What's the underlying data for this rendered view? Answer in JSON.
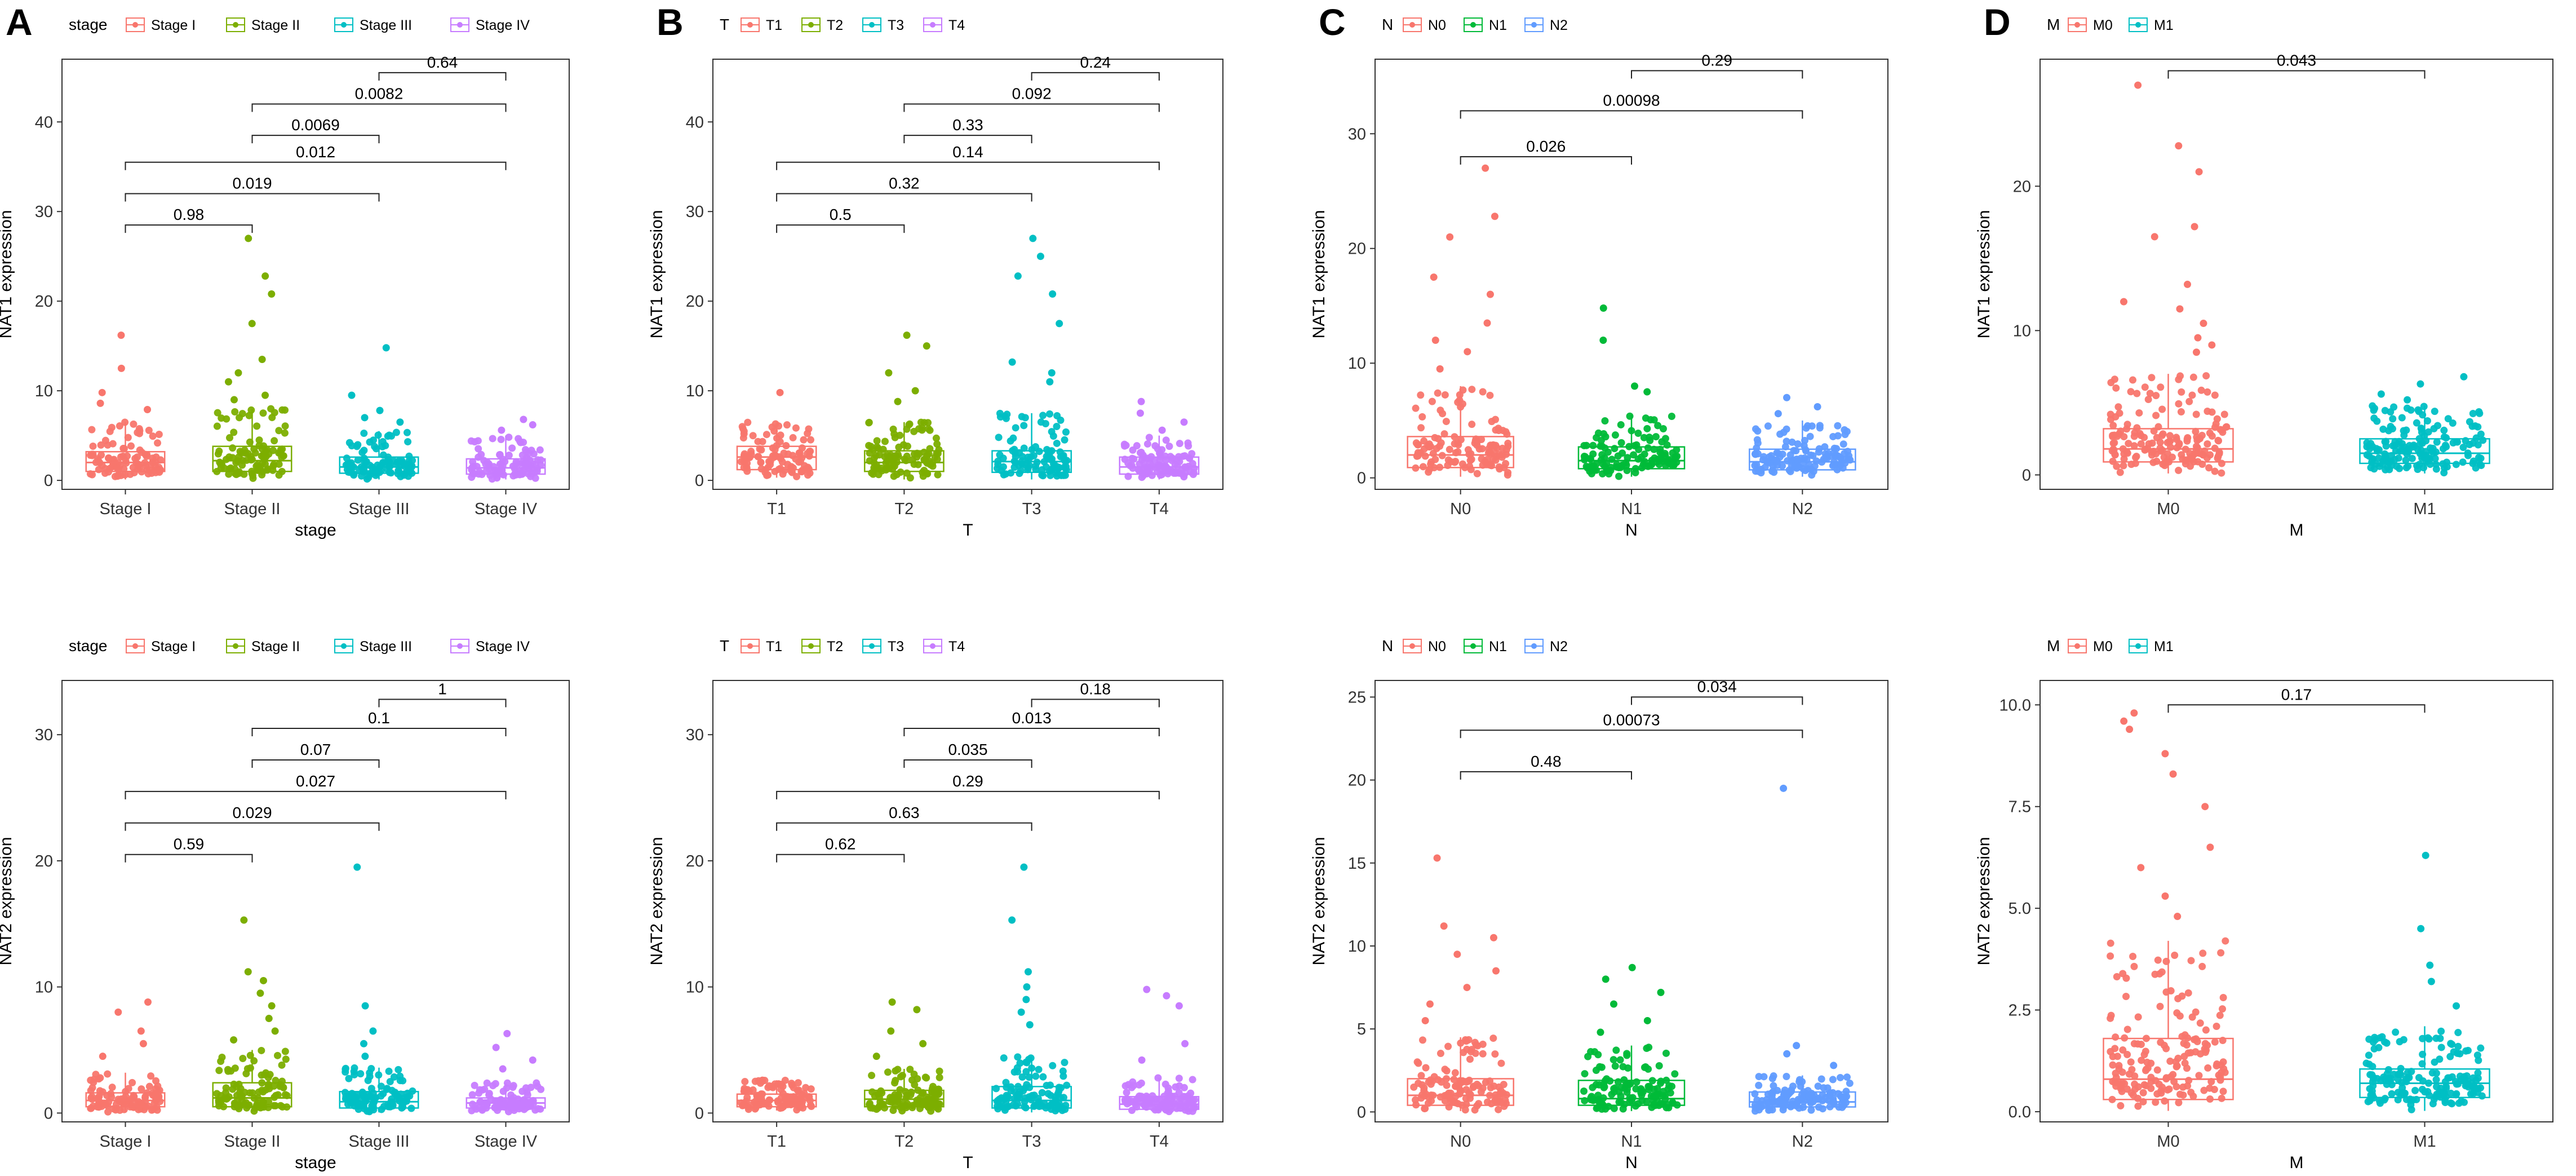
{
  "chart_data": [
    {
      "type": "box",
      "panel": "A",
      "xlabel": "stage",
      "ylabel": "NAT1 expression",
      "ylim": [
        -1,
        47
      ],
      "yticks": [
        0,
        10,
        20,
        30,
        40
      ],
      "legend": {
        "title": "stage",
        "entries": [
          "Stage I",
          "Stage II",
          "Stage III",
          "Stage IV"
        ],
        "position": "top"
      },
      "categories": [
        "Stage I",
        "Stage II",
        "Stage III",
        "Stage IV"
      ],
      "colors": [
        "#F8766D",
        "#7CAE00",
        "#00BFC4",
        "#C77CFF"
      ],
      "boxes": [
        {
          "q1": 1.0,
          "median": 2.0,
          "q3": 3.2,
          "whisker_low": 0.1,
          "whisker_high": 6.5
        },
        {
          "q1": 1.0,
          "median": 2.2,
          "q3": 3.8,
          "whisker_low": 0.1,
          "whisker_high": 8.0
        },
        {
          "q1": 0.8,
          "median": 1.5,
          "q3": 2.6,
          "whisker_low": 0.1,
          "whisker_high": 5.5
        },
        {
          "q1": 0.7,
          "median": 1.4,
          "q3": 2.4,
          "whisker_low": 0.1,
          "whisker_high": 5.0
        }
      ],
      "outliers": [
        [
          16.2,
          12.5,
          9.8,
          8.6,
          7.9
        ],
        [
          27.0,
          22.8,
          20.8,
          17.5,
          13.5,
          12.0,
          11.0,
          9.5,
          9.0
        ],
        [
          14.8,
          9.5,
          7.8,
          7.0,
          6.5
        ],
        [
          6.8,
          6.2,
          5.6
        ]
      ],
      "comparisons": [
        {
          "from": 0,
          "to": 1,
          "y": 28.5,
          "p": "0.98"
        },
        {
          "from": 0,
          "to": 2,
          "y": 32.0,
          "p": "0.019"
        },
        {
          "from": 0,
          "to": 3,
          "y": 35.5,
          "p": "0.012"
        },
        {
          "from": 1,
          "to": 2,
          "y": 38.5,
          "p": "0.0069"
        },
        {
          "from": 1,
          "to": 3,
          "y": 42.0,
          "p": "0.0082"
        },
        {
          "from": 2,
          "to": 3,
          "y": 45.5,
          "p": "0.64"
        }
      ]
    },
    {
      "type": "box",
      "panel": "B",
      "xlabel": "T",
      "ylabel": "NAT1 expression",
      "ylim": [
        -1,
        47
      ],
      "yticks": [
        0,
        10,
        20,
        30,
        40
      ],
      "legend": {
        "title": "T",
        "entries": [
          "T1",
          "T2",
          "T3",
          "T4"
        ],
        "position": "top"
      },
      "categories": [
        "T1",
        "T2",
        "T3",
        "T4"
      ],
      "colors": [
        "#F8766D",
        "#7CAE00",
        "#00BFC4",
        "#C77CFF"
      ],
      "boxes": [
        {
          "q1": 1.2,
          "median": 2.6,
          "q3": 3.8,
          "whisker_low": 0.3,
          "whisker_high": 6.5
        },
        {
          "q1": 1.0,
          "median": 2.0,
          "q3": 3.3,
          "whisker_low": 0.1,
          "whisker_high": 6.5
        },
        {
          "q1": 0.9,
          "median": 2.1,
          "q3": 3.3,
          "whisker_low": 0.1,
          "whisker_high": 7.5
        },
        {
          "q1": 0.7,
          "median": 1.5,
          "q3": 2.6,
          "whisker_low": 0.1,
          "whisker_high": 5.0
        }
      ],
      "outliers": [
        [
          9.8
        ],
        [
          16.2,
          15.0,
          12.0,
          10.0,
          8.8
        ],
        [
          27.0,
          25.0,
          22.8,
          20.8,
          17.5,
          13.2,
          12.0,
          11.0
        ],
        [
          8.8,
          7.5,
          6.5,
          5.6
        ]
      ],
      "comparisons": [
        {
          "from": 0,
          "to": 1,
          "y": 28.5,
          "p": "0.5"
        },
        {
          "from": 0,
          "to": 2,
          "y": 32.0,
          "p": "0.32"
        },
        {
          "from": 0,
          "to": 3,
          "y": 35.5,
          "p": "0.14"
        },
        {
          "from": 1,
          "to": 2,
          "y": 38.5,
          "p": "0.33"
        },
        {
          "from": 1,
          "to": 3,
          "y": 42.0,
          "p": "0.092"
        },
        {
          "from": 2,
          "to": 3,
          "y": 45.5,
          "p": "0.24"
        }
      ]
    },
    {
      "type": "box",
      "panel": "C",
      "xlabel": "N",
      "ylabel": "NAT1 expression",
      "ylim": [
        -1,
        36.5
      ],
      "yticks": [
        0,
        10,
        20,
        30
      ],
      "legend": {
        "title": "N",
        "entries": [
          "N0",
          "N1",
          "N2"
        ],
        "position": "top"
      },
      "categories": [
        "N0",
        "N1",
        "N2"
      ],
      "colors": [
        "#F8766D",
        "#00BA38",
        "#619CFF"
      ],
      "boxes": [
        {
          "q1": 0.9,
          "median": 2.0,
          "q3": 3.6,
          "whisker_low": 0.1,
          "whisker_high": 8.0
        },
        {
          "q1": 0.8,
          "median": 1.5,
          "q3": 2.7,
          "whisker_low": 0.1,
          "whisker_high": 5.5
        },
        {
          "q1": 0.7,
          "median": 1.4,
          "q3": 2.5,
          "whisker_low": 0.1,
          "whisker_high": 5.0
        }
      ],
      "outliers": [
        [
          27.0,
          22.8,
          21.0,
          17.5,
          16.0,
          13.5,
          12.0,
          11.0,
          9.5
        ],
        [
          14.8,
          12.0,
          8.0,
          7.5
        ],
        [
          7.0,
          6.2,
          5.6
        ]
      ],
      "comparisons": [
        {
          "from": 0,
          "to": 1,
          "y": 28.0,
          "p": "0.026"
        },
        {
          "from": 0,
          "to": 2,
          "y": 32.0,
          "p": "0.00098"
        },
        {
          "from": 1,
          "to": 2,
          "y": 35.5,
          "p": "0.29"
        }
      ]
    },
    {
      "type": "box",
      "panel": "D",
      "xlabel": "M",
      "ylabel": "NAT1 expression",
      "ylim": [
        -1,
        28.8
      ],
      "yticks": [
        0,
        10,
        20
      ],
      "legend": {
        "title": "M",
        "entries": [
          "M0",
          "M1"
        ],
        "position": "top"
      },
      "categories": [
        "M0",
        "M1"
      ],
      "colors": [
        "#F8766D",
        "#00BFC4"
      ],
      "boxes": [
        {
          "q1": 0.9,
          "median": 1.8,
          "q3": 3.2,
          "whisker_low": 0.1,
          "whisker_high": 7.0
        },
        {
          "q1": 0.8,
          "median": 1.5,
          "q3": 2.5,
          "whisker_low": 0.1,
          "whisker_high": 4.8
        }
      ],
      "outliers": [
        [
          27.0,
          22.8,
          21.0,
          17.2,
          16.5,
          13.2,
          12.0,
          11.5,
          10.5,
          9.5,
          9.0,
          8.5
        ],
        [
          6.8,
          6.3,
          5.6,
          5.2
        ]
      ],
      "comparisons": [
        {
          "from": 0,
          "to": 1,
          "y": 28.0,
          "p": "0.043"
        }
      ]
    },
    {
      "type": "box",
      "panel": "",
      "xlabel": "stage",
      "ylabel": "NAT2 expression",
      "ylim": [
        -0.7,
        34.3
      ],
      "yticks": [
        0,
        10,
        20,
        30
      ],
      "legend": {
        "title": "stage",
        "entries": [
          "Stage I",
          "Stage II",
          "Stage III",
          "Stage IV"
        ],
        "position": "top"
      },
      "categories": [
        "Stage I",
        "Stage II",
        "Stage III",
        "Stage IV"
      ],
      "colors": [
        "#F8766D",
        "#7CAE00",
        "#00BFC4",
        "#C77CFF"
      ],
      "boxes": [
        {
          "q1": 0.5,
          "median": 1.0,
          "q3": 1.6,
          "whisker_low": 0.05,
          "whisker_high": 3.2
        },
        {
          "q1": 0.5,
          "median": 1.2,
          "q3": 2.4,
          "whisker_low": 0.05,
          "whisker_high": 5.0
        },
        {
          "q1": 0.4,
          "median": 0.9,
          "q3": 1.7,
          "whisker_low": 0.05,
          "whisker_high": 3.6
        },
        {
          "q1": 0.4,
          "median": 0.8,
          "q3": 1.2,
          "whisker_low": 0.05,
          "whisker_high": 2.4
        }
      ],
      "outliers": [
        [
          8.8,
          8.0,
          6.5,
          5.5,
          4.5
        ],
        [
          15.3,
          11.2,
          10.5,
          9.5,
          8.5,
          7.5,
          6.5,
          5.8
        ],
        [
          19.5,
          8.5,
          6.5,
          5.5,
          4.5
        ],
        [
          6.3,
          5.2,
          4.2,
          3.5
        ]
      ],
      "comparisons": [
        {
          "from": 0,
          "to": 1,
          "y": 20.5,
          "p": "0.59"
        },
        {
          "from": 0,
          "to": 2,
          "y": 23.0,
          "p": "0.029"
        },
        {
          "from": 0,
          "to": 3,
          "y": 25.5,
          "p": "0.027"
        },
        {
          "from": 1,
          "to": 2,
          "y": 28.0,
          "p": "0.07"
        },
        {
          "from": 1,
          "to": 3,
          "y": 30.5,
          "p": "0.1"
        },
        {
          "from": 2,
          "to": 3,
          "y": 32.8,
          "p": "1"
        }
      ]
    },
    {
      "type": "box",
      "panel": "",
      "xlabel": "T",
      "ylabel": "NAT2 expression",
      "ylim": [
        -0.7,
        34.3
      ],
      "yticks": [
        0,
        10,
        20,
        30
      ],
      "legend": {
        "title": "T",
        "entries": [
          "T1",
          "T2",
          "T3",
          "T4"
        ],
        "position": "top"
      },
      "categories": [
        "T1",
        "T2",
        "T3",
        "T4"
      ],
      "colors": [
        "#F8766D",
        "#7CAE00",
        "#00BFC4",
        "#C77CFF"
      ],
      "boxes": [
        {
          "q1": 0.5,
          "median": 1.0,
          "q3": 1.5,
          "whisker_low": 0.2,
          "whisker_high": 2.6
        },
        {
          "q1": 0.5,
          "median": 1.1,
          "q3": 1.8,
          "whisker_low": 0.05,
          "whisker_high": 3.5
        },
        {
          "q1": 0.4,
          "median": 1.0,
          "q3": 2.1,
          "whisker_low": 0.05,
          "whisker_high": 4.5
        },
        {
          "q1": 0.3,
          "median": 0.7,
          "q3": 1.3,
          "whisker_low": 0.05,
          "whisker_high": 2.8
        }
      ],
      "outliers": [
        [
          2.6
        ],
        [
          8.8,
          8.2,
          6.5,
          5.5,
          4.5
        ],
        [
          19.5,
          15.3,
          11.2,
          10.0,
          9.0,
          8.0,
          7.0
        ],
        [
          9.8,
          9.3,
          8.5,
          5.5,
          4.2
        ]
      ],
      "comparisons": [
        {
          "from": 0,
          "to": 1,
          "y": 20.5,
          "p": "0.62"
        },
        {
          "from": 0,
          "to": 2,
          "y": 23.0,
          "p": "0.63"
        },
        {
          "from": 0,
          "to": 3,
          "y": 25.5,
          "p": "0.29"
        },
        {
          "from": 1,
          "to": 2,
          "y": 28.0,
          "p": "0.035"
        },
        {
          "from": 1,
          "to": 3,
          "y": 30.5,
          "p": "0.013"
        },
        {
          "from": 2,
          "to": 3,
          "y": 32.8,
          "p": "0.18"
        }
      ]
    },
    {
      "type": "box",
      "panel": "",
      "xlabel": "N",
      "ylabel": "NAT2 expression",
      "ylim": [
        -0.6,
        26.0
      ],
      "yticks": [
        0,
        5,
        10,
        15,
        20,
        25
      ],
      "legend": {
        "title": "N",
        "entries": [
          "N0",
          "N1",
          "N2"
        ],
        "position": "top"
      },
      "categories": [
        "N0",
        "N1",
        "N2"
      ],
      "colors": [
        "#F8766D",
        "#00BA38",
        "#619CFF"
      ],
      "boxes": [
        {
          "q1": 0.4,
          "median": 1.0,
          "q3": 2.0,
          "whisker_low": 0.05,
          "whisker_high": 4.5
        },
        {
          "q1": 0.4,
          "median": 0.8,
          "q3": 1.9,
          "whisker_low": 0.05,
          "whisker_high": 4.0
        },
        {
          "q1": 0.3,
          "median": 0.6,
          "q3": 1.2,
          "whisker_low": 0.05,
          "whisker_high": 2.2
        }
      ],
      "outliers": [
        [
          15.3,
          11.2,
          10.5,
          9.5,
          8.5,
          7.5,
          6.5,
          5.5
        ],
        [
          8.7,
          8.0,
          7.2,
          6.5,
          5.5,
          4.8
        ],
        [
          19.5,
          4.0,
          3.5,
          2.8
        ]
      ],
      "comparisons": [
        {
          "from": 0,
          "to": 1,
          "y": 20.5,
          "p": "0.48"
        },
        {
          "from": 0,
          "to": 2,
          "y": 23.0,
          "p": "0.00073"
        },
        {
          "from": 1,
          "to": 2,
          "y": 25.0,
          "p": "0.034"
        }
      ]
    },
    {
      "type": "box",
      "panel": "",
      "xlabel": "M",
      "ylabel": "NAT2 expression",
      "ylim": [
        -0.25,
        10.6
      ],
      "yticks": [
        0,
        2.5,
        5,
        7.5,
        10
      ],
      "ytick_labels": [
        "0.0",
        "2.5",
        "5.0",
        "7.5",
        "10.0"
      ],
      "legend": {
        "title": "M",
        "entries": [
          "M0",
          "M1"
        ],
        "position": "top"
      },
      "categories": [
        "M0",
        "M1"
      ],
      "colors": [
        "#F8766D",
        "#00BFC4"
      ],
      "boxes": [
        {
          "q1": 0.3,
          "median": 0.8,
          "q3": 1.8,
          "whisker_low": 0.02,
          "whisker_high": 4.2
        },
        {
          "q1": 0.35,
          "median": 0.7,
          "q3": 1.05,
          "whisker_low": 0.02,
          "whisker_high": 2.1
        }
      ],
      "outliers": [
        [
          9.8,
          9.6,
          9.4,
          8.8,
          8.3,
          7.5,
          6.5,
          6.0,
          5.3,
          4.8
        ],
        [
          6.3,
          4.5,
          3.6,
          3.2,
          2.6
        ]
      ],
      "comparisons": [
        {
          "from": 0,
          "to": 1,
          "y": 10.0,
          "p": "0.17"
        }
      ]
    }
  ]
}
